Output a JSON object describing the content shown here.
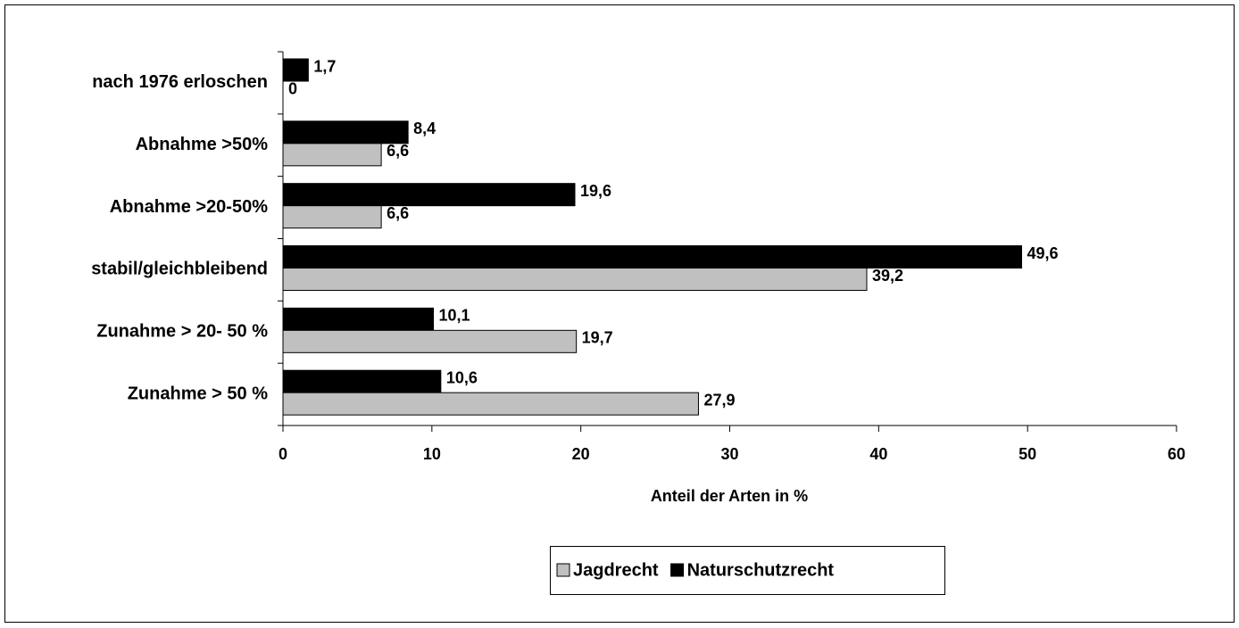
{
  "chart_data": {
    "type": "barh",
    "xlabel": "Anteil der Arten in %",
    "categories": [
      "nach 1976 erloschen",
      "Abnahme >50%",
      "Abnahme >20-50%",
      "stabil/gleichbleibend",
      "Zunahme > 20- 50 %",
      "Zunahme > 50 %"
    ],
    "series": [
      {
        "name": "Jagdrecht",
        "color": "#c0c0c0",
        "values": [
          0,
          6.6,
          6.6,
          39.2,
          19.7,
          27.9
        ],
        "value_labels": [
          "0",
          "6,6",
          "6,6",
          "39,2",
          "19,7",
          "27,9"
        ]
      },
      {
        "name": "Naturschutzrecht",
        "color": "#000000",
        "values": [
          1.7,
          8.4,
          19.6,
          49.6,
          10.1,
          10.6
        ],
        "value_labels": [
          "1,7",
          "8,4",
          "19,6",
          "49,6",
          "10,1",
          "10,6"
        ]
      }
    ],
    "xlim": [
      0,
      60
    ],
    "xticks": [
      0,
      10,
      20,
      30,
      40,
      50,
      60
    ],
    "legend": "bottom"
  }
}
